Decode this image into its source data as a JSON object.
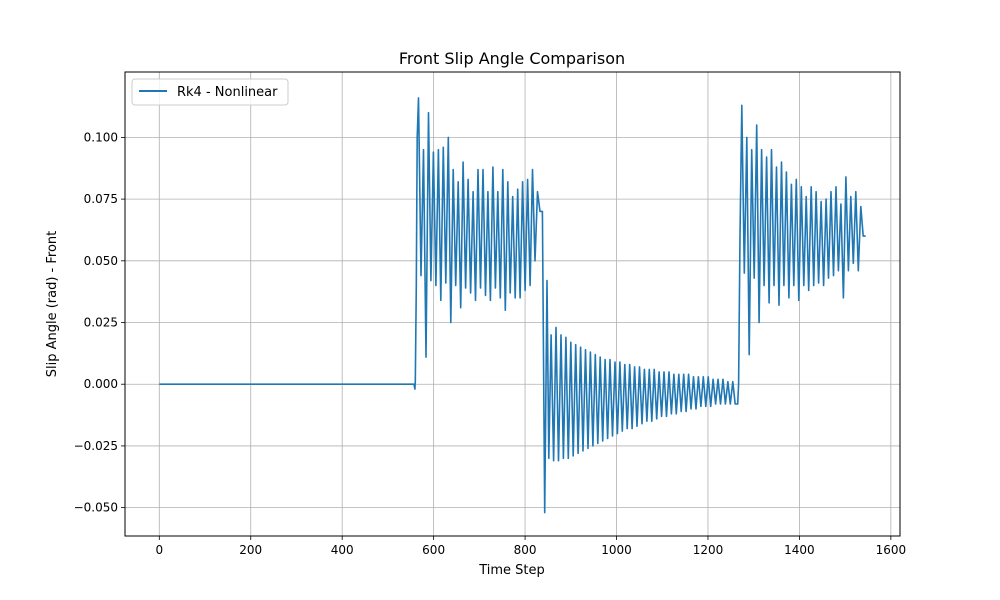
{
  "chart_data": {
    "type": "line",
    "title": "Front Slip Angle Comparison",
    "xlabel": "Time Step",
    "ylabel": "Slip Angle (rad) - Front",
    "xlim": [
      -75,
      1620
    ],
    "ylim": [
      -0.0615,
      0.1265
    ],
    "grid": true,
    "legend_position": "top-left",
    "xticks": [
      0,
      200,
      400,
      600,
      800,
      1000,
      1200,
      1400,
      1600
    ],
    "xtick_labels": [
      "0",
      "200",
      "400",
      "600",
      "800",
      "1000",
      "1200",
      "1400",
      "1600"
    ],
    "yticks": [
      -0.05,
      -0.025,
      0.0,
      0.025,
      0.05,
      0.075,
      0.1
    ],
    "ytick_labels": [
      "−0.050",
      "−0.025",
      "0.000",
      "0.025",
      "0.050",
      "0.075",
      "0.100"
    ],
    "series": [
      {
        "name": "Rk4 - Nonlinear",
        "color": "#1f77b4",
        "segments": [
          {
            "type": "flat",
            "start": 0,
            "end": 557,
            "value": 0.0
          },
          {
            "type": "points",
            "x": [
              557,
              559,
              560,
              562,
              564,
              567
            ],
            "y": [
              0.0,
              -0.002,
              0.001,
              0.04,
              0.1,
              0.116
            ]
          },
          {
            "type": "oscillation",
            "start": 567,
            "end": 838,
            "period": 11,
            "peaks": [
              0.116,
              0.095,
              0.11,
              0.094,
              0.095,
              0.096,
              0.1,
              0.087,
              0.082,
              0.09,
              0.083,
              0.078,
              0.087,
              0.087,
              0.078,
              0.088,
              0.078,
              0.087,
              0.082,
              0.076,
              0.079,
              0.082,
              0.083,
              0.087,
              0.078
            ],
            "troughs": [
              0.044,
              0.011,
              0.042,
              0.04,
              0.034,
              0.041,
              0.025,
              0.04,
              0.031,
              0.039,
              0.037,
              0.034,
              0.039,
              0.036,
              0.034,
              0.039,
              0.035,
              0.03,
              0.037,
              0.035,
              0.035,
              0.038,
              0.04,
              0.05,
              0.07
            ]
          },
          {
            "type": "points",
            "x": [
              838,
              843,
              848,
              852,
              857
            ],
            "y": [
              0.07,
              -0.052,
              0.042,
              -0.03,
              0.02
            ]
          },
          {
            "type": "oscillation",
            "start": 857,
            "end": 1265,
            "period": 11,
            "peaks": [
              0.02,
              0.023,
              0.02,
              0.019,
              0.017,
              0.016,
              0.015,
              0.014,
              0.013,
              0.012,
              0.011,
              0.01,
              0.01,
              0.009,
              0.009,
              0.008,
              0.008,
              0.007,
              0.007,
              0.006,
              0.006,
              0.006,
              0.005,
              0.005,
              0.005,
              0.004,
              0.004,
              0.004,
              0.004,
              0.003,
              0.003,
              0.003,
              0.003,
              0.002,
              0.002,
              0.002,
              0.001,
              0.001
            ],
            "troughs": [
              -0.031,
              -0.031,
              -0.03,
              -0.03,
              -0.029,
              -0.028,
              -0.027,
              -0.026,
              -0.025,
              -0.024,
              -0.023,
              -0.022,
              -0.021,
              -0.02,
              -0.019,
              -0.018,
              -0.018,
              -0.017,
              -0.016,
              -0.015,
              -0.015,
              -0.014,
              -0.013,
              -0.013,
              -0.012,
              -0.012,
              -0.011,
              -0.011,
              -0.01,
              -0.01,
              -0.009,
              -0.009,
              -0.009,
              -0.008,
              -0.008,
              -0.008,
              -0.008,
              -0.008
            ]
          },
          {
            "type": "points",
            "x": [
              1265,
              1267,
              1270,
              1274
            ],
            "y": [
              -0.008,
              0.0,
              0.06,
              0.113
            ]
          },
          {
            "type": "oscillation",
            "start": 1274,
            "end": 1545,
            "period": 11,
            "peaks": [
              0.113,
              0.1,
              0.095,
              0.105,
              0.095,
              0.092,
              0.095,
              0.088,
              0.09,
              0.086,
              0.081,
              0.083,
              0.08,
              0.076,
              0.08,
              0.078,
              0.074,
              0.075,
              0.078,
              0.08,
              0.073,
              0.084,
              0.076,
              0.078,
              0.072
            ],
            "troughs": [
              0.045,
              0.012,
              0.043,
              0.025,
              0.04,
              0.033,
              0.04,
              0.032,
              0.04,
              0.035,
              0.04,
              0.034,
              0.04,
              0.038,
              0.04,
              0.041,
              0.04,
              0.043,
              0.044,
              0.046,
              0.035,
              0.046,
              0.049,
              0.046,
              0.06
            ]
          }
        ]
      }
    ]
  }
}
